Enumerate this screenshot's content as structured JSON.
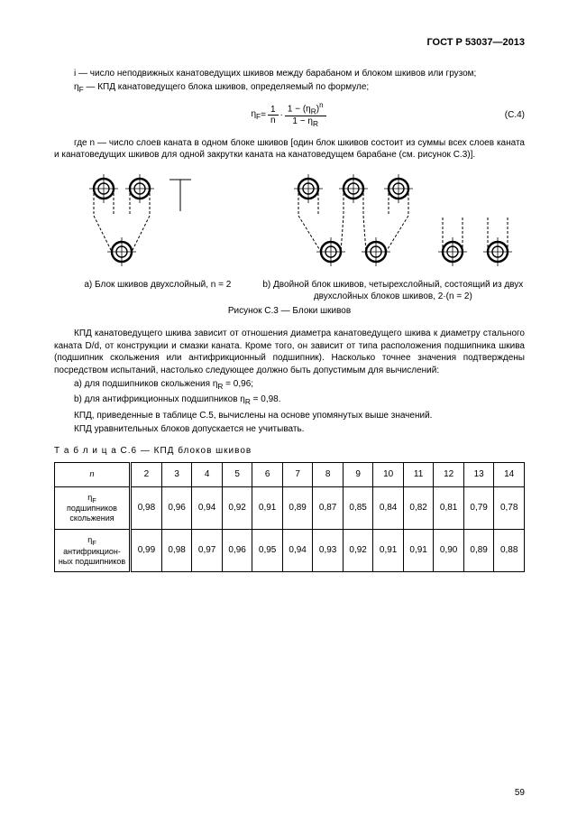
{
  "header": "ГОСТ Р 53037—2013",
  "line_i": "i — число неподвижных канатоведущих шкивов между барабаном и блоком шкивов или грузом;",
  "line_etaF": "η",
  "line_etaF_sub": "F",
  "line_etaF_rest": " — КПД канатоведущего блока шкивов, определяемый по формуле;",
  "formula": {
    "lhs": "η",
    "lhs_sub": "F",
    "eq": " = ",
    "frac1_num": "1",
    "frac1_den": "n",
    "mult": " · ",
    "num2": "1 − (η",
    "num2_sub": "R",
    "num2_rest": ")",
    "num2_sup": "n",
    "den2": "1 − η",
    "den2_sub": "R",
    "label": "(С.4)"
  },
  "line_n": "где n — число слоев каната в одном блоке шкивов [один блок шкивов состоит из суммы всех слоев каната и канатоведущих шкивов для одной закрутки каната на канатоведущем барабане (см. рисунок С.3)].",
  "caption_a": "a) Блок шкивов двухслойный, n = 2",
  "caption_b": "b) Двойной блок шкивов, четырехслойный, состоящий из двух двухслойных блоков шкивов, 2·(n = 2)",
  "fig_caption": "Рисунок С.3 — Блоки шкивов",
  "p1": "КПД канатоведущего шкива зависит от отношения диаметра канатоведущего шкива к диаметру стального каната D/d, от конструкции и смазки каната. Кроме того, он зависит от типа расположения подшипника шкива (подшипник скольжения или антифрикционный подшипник). Насколько точнее значения подтверждены посредством испытаний, настолько следующее должно быть допустимым для вычислений:",
  "p2a": "a) для подшипников скольжения η",
  "p2a_sub": "R",
  "p2a_rest": " = 0,96;",
  "p2b": "b) для антифрикционных подшипников η",
  "p2b_sub": "R",
  "p2b_rest": " = 0,98.",
  "p3": "КПД, приведенные в таблице С.5, вычислены на основе упомянутых выше значений.",
  "p4": "КПД уравнительных блоков допускается не учитывать.",
  "table_caption": "Т а б л и ц а  С.6 — КПД блоков шкивов",
  "table": {
    "header_sym": "n",
    "cols": [
      "2",
      "3",
      "4",
      "5",
      "6",
      "7",
      "8",
      "9",
      "10",
      "11",
      "12",
      "13",
      "14"
    ],
    "row1_label_sym": "η",
    "row1_label_sub": "F",
    "row1_label": "подшипников скольжения",
    "row1": [
      "0,98",
      "0,96",
      "0,94",
      "0,92",
      "0,91",
      "0,89",
      "0,87",
      "0,85",
      "0,84",
      "0,82",
      "0,81",
      "0,79",
      "0,78"
    ],
    "row2_label_sym": "η",
    "row2_label_sub": "F",
    "row2_label": "антифрикцион-\nных подшипников",
    "row2": [
      "0,99",
      "0,98",
      "0,97",
      "0,96",
      "0,95",
      "0,94",
      "0,93",
      "0,92",
      "0,91",
      "0,91",
      "0,90",
      "0,89",
      "0,88"
    ]
  },
  "page_number": "59",
  "svg": {
    "stroke": "#000000",
    "stroke_width": 1.4,
    "outer_r": 11,
    "inner_r": 6,
    "cross_len": 16
  }
}
